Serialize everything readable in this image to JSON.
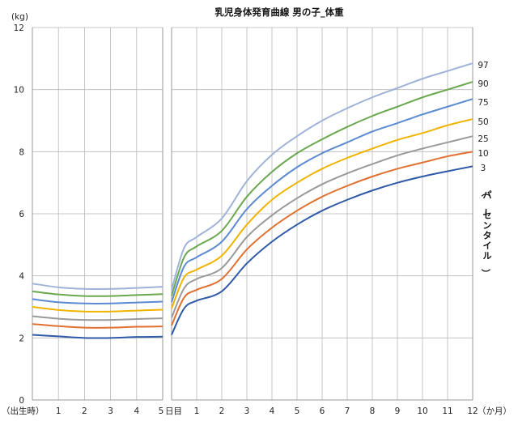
{
  "chart_data": {
    "type": "line",
    "title": "乳児身体発育曲線 男の子_体重",
    "ylabel_unit": "(kg)",
    "ylim": [
      0,
      12
    ],
    "y_ticks": [
      "0",
      "2",
      "4",
      "6",
      "8",
      "10",
      "12"
    ],
    "grid": true,
    "legend_placement": "right",
    "percentile_axis_label": "（パーセンタイル）",
    "panels": [
      {
        "name": "days",
        "x_range": [
          0,
          5
        ],
        "x_ticks": [
          {
            "x": 0,
            "label": "（出生時）"
          },
          {
            "x": 1,
            "label": "1"
          },
          {
            "x": 2,
            "label": "2"
          },
          {
            "x": 3,
            "label": "3"
          },
          {
            "x": 4,
            "label": "4"
          },
          {
            "x": 5,
            "label": "5"
          }
        ],
        "x_unit_label": "日目",
        "series": [
          {
            "percentile": "3",
            "color": "#2e5aa8",
            "points": [
              [
                0,
                2.1
              ],
              [
                1,
                2.05
              ],
              [
                2,
                2.0
              ],
              [
                3,
                2.0
              ],
              [
                4,
                2.03
              ],
              [
                5,
                2.04
              ]
            ]
          },
          {
            "percentile": "10",
            "color": "#e07030",
            "points": [
              [
                0,
                2.45
              ],
              [
                1,
                2.38
              ],
              [
                2,
                2.33
              ],
              [
                3,
                2.33
              ],
              [
                4,
                2.36
              ],
              [
                5,
                2.37
              ]
            ]
          },
          {
            "percentile": "25",
            "color": "#9a9a9a",
            "points": [
              [
                0,
                2.7
              ],
              [
                1,
                2.62
              ],
              [
                2,
                2.58
              ],
              [
                3,
                2.58
              ],
              [
                4,
                2.61
              ],
              [
                5,
                2.63
              ]
            ]
          },
          {
            "percentile": "50",
            "color": "#f0b400",
            "points": [
              [
                0,
                3.0
              ],
              [
                1,
                2.9
              ],
              [
                2,
                2.85
              ],
              [
                3,
                2.85
              ],
              [
                4,
                2.88
              ],
              [
                5,
                2.91
              ]
            ]
          },
          {
            "percentile": "75",
            "color": "#5b8ad0",
            "points": [
              [
                0,
                3.25
              ],
              [
                1,
                3.15
              ],
              [
                2,
                3.11
              ],
              [
                3,
                3.11
              ],
              [
                4,
                3.14
              ],
              [
                5,
                3.17
              ]
            ]
          },
          {
            "percentile": "90",
            "color": "#6aa84f",
            "points": [
              [
                0,
                3.5
              ],
              [
                1,
                3.4
              ],
              [
                2,
                3.35
              ],
              [
                3,
                3.35
              ],
              [
                4,
                3.38
              ],
              [
                5,
                3.41
              ]
            ]
          },
          {
            "percentile": "97",
            "color": "#9fb3d8",
            "points": [
              [
                0,
                3.75
              ],
              [
                1,
                3.63
              ],
              [
                2,
                3.58
              ],
              [
                3,
                3.58
              ],
              [
                4,
                3.61
              ],
              [
                5,
                3.65
              ]
            ]
          }
        ]
      },
      {
        "name": "months",
        "x_range": [
          0,
          12
        ],
        "x_ticks": [
          {
            "x": 1,
            "label": "1"
          },
          {
            "x": 2,
            "label": "2"
          },
          {
            "x": 3,
            "label": "3"
          },
          {
            "x": 4,
            "label": "4"
          },
          {
            "x": 5,
            "label": "5"
          },
          {
            "x": 6,
            "label": "6"
          },
          {
            "x": 7,
            "label": "7"
          },
          {
            "x": 8,
            "label": "8"
          },
          {
            "x": 9,
            "label": "9"
          },
          {
            "x": 10,
            "label": "10"
          },
          {
            "x": 11,
            "label": "11"
          },
          {
            "x": 12,
            "label": "12"
          }
        ],
        "x_unit_label": "（か月）",
        "series": [
          {
            "percentile": "3",
            "color": "#2e5aa8",
            "points": [
              [
                0,
                2.1
              ],
              [
                0.5,
                2.95
              ],
              [
                1,
                3.2
              ],
              [
                2,
                3.5
              ],
              [
                3,
                4.4
              ],
              [
                4,
                5.1
              ],
              [
                5,
                5.65
              ],
              [
                6,
                6.1
              ],
              [
                7,
                6.45
              ],
              [
                8,
                6.75
              ],
              [
                9,
                7.0
              ],
              [
                10,
                7.2
              ],
              [
                11,
                7.37
              ],
              [
                12,
                7.53
              ]
            ]
          },
          {
            "percentile": "10",
            "color": "#e07030",
            "points": [
              [
                0,
                2.4
              ],
              [
                0.5,
                3.3
              ],
              [
                1,
                3.55
              ],
              [
                2,
                3.9
              ],
              [
                3,
                4.85
              ],
              [
                4,
                5.55
              ],
              [
                5,
                6.1
              ],
              [
                6,
                6.55
              ],
              [
                7,
                6.9
              ],
              [
                8,
                7.2
              ],
              [
                9,
                7.45
              ],
              [
                10,
                7.65
              ],
              [
                11,
                7.85
              ],
              [
                12,
                8.0
              ]
            ]
          },
          {
            "percentile": "25",
            "color": "#9a9a9a",
            "points": [
              [
                0,
                2.65
              ],
              [
                0.5,
                3.6
              ],
              [
                1,
                3.9
              ],
              [
                2,
                4.25
              ],
              [
                3,
                5.25
              ],
              [
                4,
                5.95
              ],
              [
                5,
                6.5
              ],
              [
                6,
                6.95
              ],
              [
                7,
                7.3
              ],
              [
                8,
                7.6
              ],
              [
                9,
                7.88
              ],
              [
                10,
                8.1
              ],
              [
                11,
                8.3
              ],
              [
                12,
                8.5
              ]
            ]
          },
          {
            "percentile": "50",
            "color": "#f0b400",
            "points": [
              [
                0,
                2.95
              ],
              [
                0.5,
                3.95
              ],
              [
                1,
                4.2
              ],
              [
                2,
                4.65
              ],
              [
                3,
                5.65
              ],
              [
                4,
                6.45
              ],
              [
                5,
                7.0
              ],
              [
                6,
                7.45
              ],
              [
                7,
                7.8
              ],
              [
                8,
                8.1
              ],
              [
                9,
                8.38
              ],
              [
                10,
                8.6
              ],
              [
                11,
                8.85
              ],
              [
                12,
                9.05
              ]
            ]
          },
          {
            "percentile": "75",
            "color": "#5b8ad0",
            "points": [
              [
                0,
                3.15
              ],
              [
                0.5,
                4.3
              ],
              [
                1,
                4.6
              ],
              [
                2,
                5.1
              ],
              [
                3,
                6.15
              ],
              [
                4,
                6.9
              ],
              [
                5,
                7.5
              ],
              [
                6,
                7.95
              ],
              [
                7,
                8.3
              ],
              [
                8,
                8.65
              ],
              [
                9,
                8.92
              ],
              [
                10,
                9.2
              ],
              [
                11,
                9.45
              ],
              [
                12,
                9.7
              ]
            ]
          },
          {
            "percentile": "90",
            "color": "#6aa84f",
            "points": [
              [
                0,
                3.35
              ],
              [
                0.5,
                4.6
              ],
              [
                1,
                4.95
              ],
              [
                2,
                5.45
              ],
              [
                3,
                6.55
              ],
              [
                4,
                7.35
              ],
              [
                5,
                7.95
              ],
              [
                6,
                8.4
              ],
              [
                7,
                8.8
              ],
              [
                8,
                9.15
              ],
              [
                9,
                9.45
              ],
              [
                10,
                9.75
              ],
              [
                11,
                10.0
              ],
              [
                12,
                10.25
              ]
            ]
          },
          {
            "percentile": "97",
            "color": "#9fb3d8",
            "points": [
              [
                0,
                3.55
              ],
              [
                0.5,
                4.9
              ],
              [
                1,
                5.25
              ],
              [
                2,
                5.85
              ],
              [
                3,
                7.05
              ],
              [
                4,
                7.9
              ],
              [
                5,
                8.5
              ],
              [
                6,
                9.0
              ],
              [
                7,
                9.4
              ],
              [
                8,
                9.75
              ],
              [
                9,
                10.05
              ],
              [
                10,
                10.35
              ],
              [
                11,
                10.6
              ],
              [
                12,
                10.85
              ]
            ]
          }
        ]
      }
    ]
  }
}
